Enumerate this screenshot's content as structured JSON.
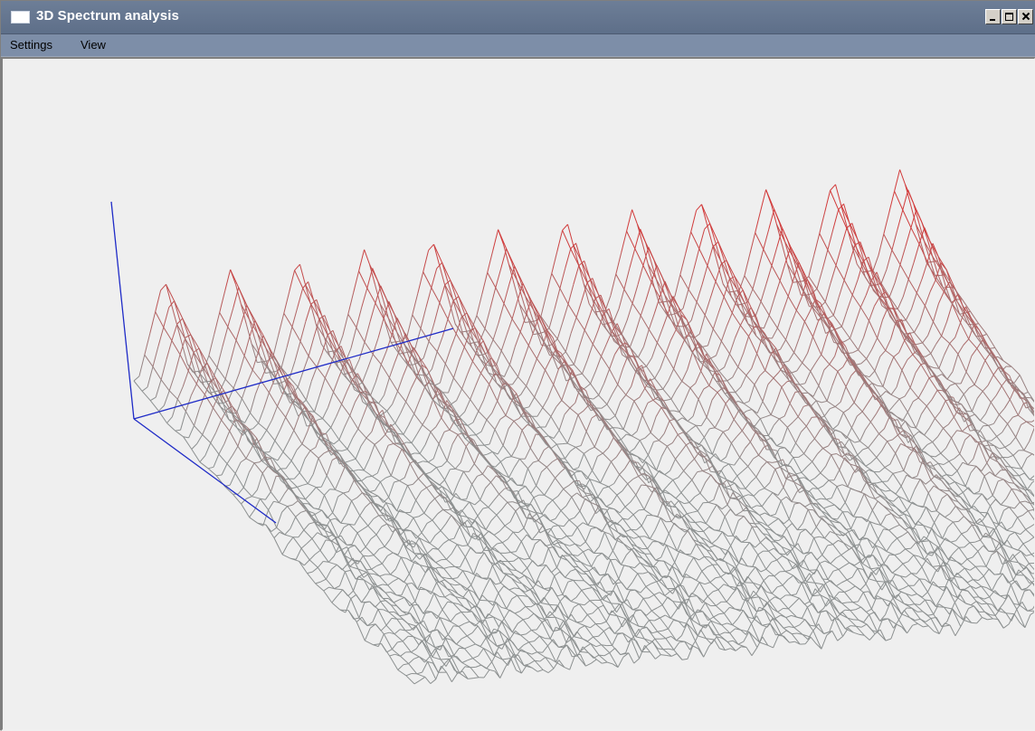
{
  "window": {
    "title": "3D Spectrum analysis",
    "title_icon": "window-icon",
    "controls": [
      "minimize-icon",
      "maximize-icon",
      "close-icon"
    ]
  },
  "menubar": {
    "items": [
      {
        "label": "Settings"
      },
      {
        "label": "View"
      }
    ]
  },
  "plot": {
    "type": "3d-wireframe-spectrum",
    "colors": {
      "peak": "#d23a3a",
      "base": "#8c9090",
      "axes": "#1f2bc7",
      "background": "#efefef"
    }
  }
}
